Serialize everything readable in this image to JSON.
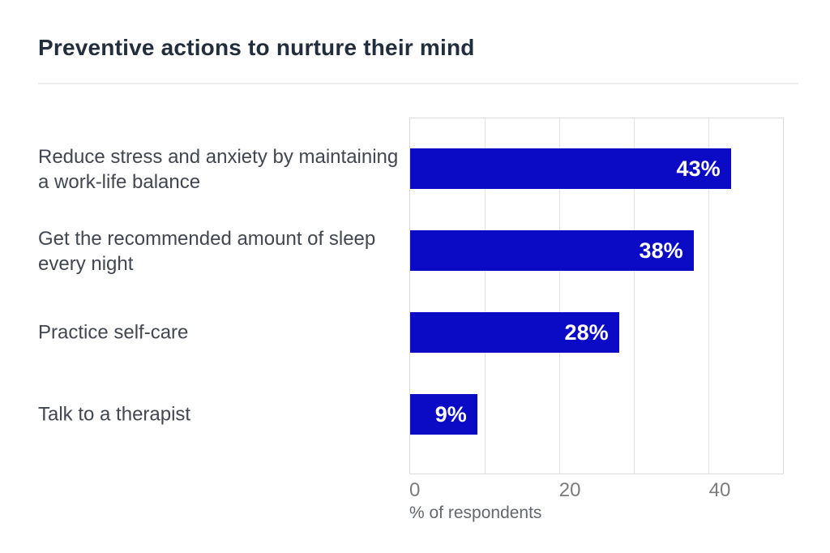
{
  "header": {
    "title": "Preventive actions to nurture their mind"
  },
  "chart_data": {
    "type": "bar",
    "orientation": "horizontal",
    "title": "Preventive actions to nurture their mind",
    "categories": [
      "Reduce stress and anxiety by maintaining a work-life balance",
      "Get the recommended amount of sleep every night",
      "Practice self-care",
      "Talk to a therapist"
    ],
    "values": [
      43,
      38,
      28,
      9
    ],
    "value_labels": [
      "43%",
      "38%",
      "28%",
      "9%"
    ],
    "xlabel": "% of respondents",
    "ylabel": "",
    "xlim": [
      0,
      50
    ],
    "xticks": [
      0,
      20,
      40
    ],
    "xtick_labels": [
      "0",
      "20",
      "40"
    ],
    "grid_values": [
      10,
      20,
      30,
      40
    ],
    "grid": true,
    "legend": false,
    "bar_color": "#0b0bc6",
    "value_label_color": "#ffffff",
    "gridline_color": "#e3e3e3"
  },
  "colors": {
    "background": "#ffffff",
    "title_text": "#232e3d",
    "category_text": "#414651",
    "tick_text": "#7b7b7b",
    "axis_title_text": "#62676e",
    "divider": "#ececec"
  }
}
